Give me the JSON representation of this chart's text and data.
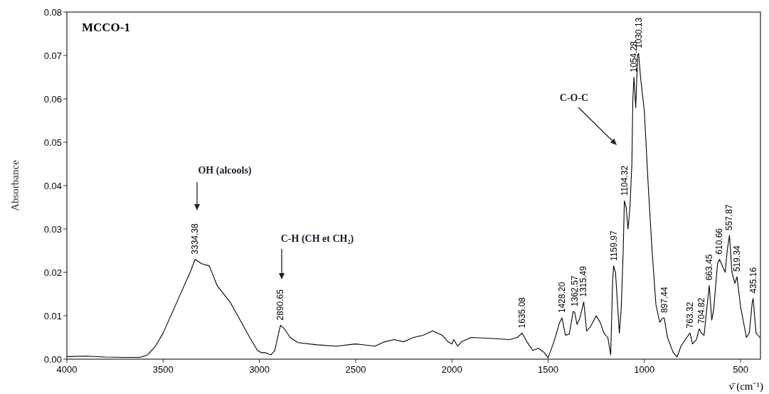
{
  "chart_data": {
    "type": "line",
    "title": "MCCO-1",
    "xlabel": "ν̄ (cm⁻¹)",
    "ylabel": "Absorbance",
    "color": "#000000",
    "x": [
      4000,
      3900,
      3800,
      3700,
      3620,
      3580,
      3540,
      3500,
      3450,
      3400,
      3360,
      3334,
      3300,
      3260,
      3220,
      3150,
      3100,
      3050,
      3010,
      2990,
      2970,
      2940,
      2920,
      2900,
      2890,
      2870,
      2840,
      2800,
      2700,
      2600,
      2500,
      2400,
      2350,
      2300,
      2250,
      2200,
      2150,
      2100,
      2050,
      2020,
      2000,
      1990,
      1970,
      1950,
      1900,
      1800,
      1700,
      1660,
      1635,
      1610,
      1580,
      1550,
      1520,
      1500,
      1470,
      1440,
      1428,
      1410,
      1390,
      1370,
      1362,
      1350,
      1335,
      1315,
      1300,
      1280,
      1250,
      1230,
      1210,
      1190,
      1175,
      1165,
      1160,
      1150,
      1130,
      1120,
      1110,
      1104,
      1095,
      1085,
      1075,
      1065,
      1060,
      1054,
      1045,
      1035,
      1030,
      1020,
      1000,
      980,
      960,
      940,
      920,
      905,
      897,
      880,
      850,
      830,
      810,
      780,
      763,
      750,
      730,
      715,
      704,
      690,
      675,
      663,
      650,
      640,
      620,
      610,
      600,
      580,
      570,
      558,
      545,
      530,
      519,
      500,
      470,
      455,
      440,
      435,
      420,
      400
    ],
    "values": [
      0.0006,
      0.0007,
      0.0005,
      0.0004,
      0.0004,
      0.001,
      0.003,
      0.006,
      0.011,
      0.016,
      0.02,
      0.023,
      0.022,
      0.0215,
      0.017,
      0.013,
      0.009,
      0.005,
      0.002,
      0.0015,
      0.0015,
      0.001,
      0.002,
      0.006,
      0.0078,
      0.007,
      0.005,
      0.0038,
      0.0033,
      0.003,
      0.0035,
      0.003,
      0.004,
      0.0045,
      0.004,
      0.005,
      0.0055,
      0.0065,
      0.0055,
      0.004,
      0.0035,
      0.0045,
      0.003,
      0.004,
      0.005,
      0.0048,
      0.0045,
      0.005,
      0.006,
      0.004,
      0.002,
      0.0025,
      0.0015,
      0.0003,
      0.004,
      0.0085,
      0.0095,
      0.0055,
      0.0058,
      0.011,
      0.0108,
      0.008,
      0.0095,
      0.0132,
      0.0065,
      0.0075,
      0.01,
      0.0085,
      0.006,
      0.005,
      0.001,
      0.018,
      0.0215,
      0.02,
      0.006,
      0.012,
      0.025,
      0.0365,
      0.035,
      0.03,
      0.035,
      0.045,
      0.06,
      0.065,
      0.058,
      0.07,
      0.0705,
      0.065,
      0.057,
      0.04,
      0.025,
      0.0125,
      0.0085,
      0.0095,
      0.0095,
      0.005,
      0.0015,
      0.0005,
      0.003,
      0.005,
      0.006,
      0.0035,
      0.0045,
      0.007,
      0.006,
      0.0055,
      0.012,
      0.017,
      0.009,
      0.0115,
      0.022,
      0.023,
      0.022,
      0.02,
      0.025,
      0.0285,
      0.02,
      0.0175,
      0.019,
      0.012,
      0.005,
      0.006,
      0.013,
      0.014,
      0.006,
      0.005
    ],
    "xlim": [
      4000,
      397
    ],
    "xticks": [
      4000,
      3500,
      3000,
      2500,
      2000,
      1500,
      1000,
      500
    ],
    "ylim": [
      0,
      0.08
    ],
    "yticks": [
      {
        "value": 0,
        "label": "0.00"
      },
      0.01,
      0.02,
      0.03,
      0.04,
      0.05,
      0.06,
      0.07,
      0.08
    ],
    "grid": false,
    "marker": "none",
    "line_style": "solid",
    "annotations": [
      "OH (alcools)",
      "C-H (CH et CH₂)",
      "C-O-C",
      {
        "text": "3334.38",
        "x": 3334.38,
        "y": 0.023
      },
      {
        "text": "2890.65",
        "x": 2890.65,
        "y": 0.0078
      },
      {
        "text": "1635.08",
        "x": 1635.08,
        "y": 0.006
      },
      {
        "text": "1428.20",
        "x": 1428.2,
        "y": 0.0095
      },
      {
        "text": "1362.57",
        "x": 1362.57,
        "y": 0.011
      },
      {
        "text": "1315.49",
        "x": 1315.49,
        "y": 0.0132
      },
      {
        "text": "1159.97",
        "x": 1159.97,
        "y": 0.0215
      },
      {
        "text": "1104.32",
        "x": 1104.32,
        "y": 0.0365
      },
      {
        "text": "1054.28",
        "x": 1054.28,
        "y": 0.065
      },
      {
        "text": "1030.13",
        "x": 1030.13,
        "y": 0.0705
      },
      {
        "text": "897.44",
        "x": 897.44,
        "y": 0.0095
      },
      {
        "text": "763.32",
        "x": 763.32,
        "y": 0.006
      },
      {
        "text": "704.82",
        "x": 704.82,
        "y": 0.007
      },
      {
        "text": "663.45",
        "x": 663.45,
        "y": 0.017
      },
      {
        "text": "610.66",
        "x": 610.66,
        "y": 0.023
      },
      {
        "text": "557.87",
        "x": 557.87,
        "y": 0.0285
      },
      {
        "text": "519.34",
        "x": 519.34,
        "y": 0.019
      },
      {
        "text": "435.16",
        "x": 435.16,
        "y": 0.014
      }
    ]
  }
}
